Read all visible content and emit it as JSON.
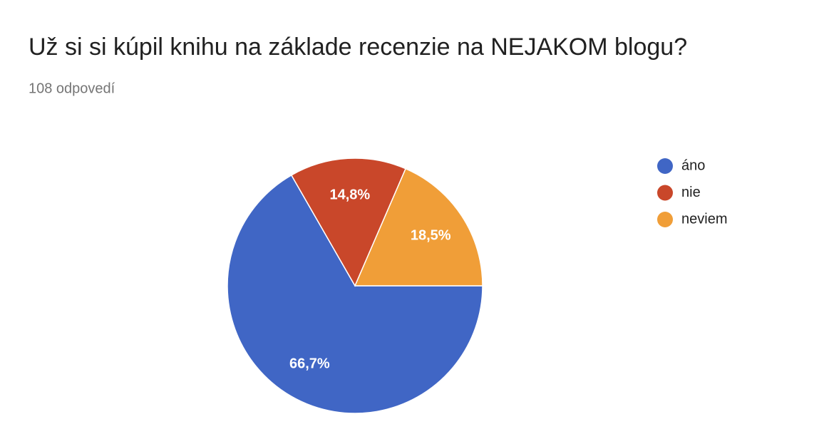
{
  "chart_data": {
    "type": "pie",
    "title": "Už si si kúpil knihu na základe recenzie na NEJAKOM blogu?",
    "subtitle": "108 odpovedí",
    "categories": [
      "áno",
      "nie",
      "neviem"
    ],
    "values": [
      66.7,
      14.8,
      18.5
    ],
    "value_labels": [
      "66,7%",
      "14,8%",
      "18,5%"
    ],
    "colors": [
      "#4066c5",
      "#c9472a",
      "#f09e38"
    ],
    "legend": "right"
  }
}
